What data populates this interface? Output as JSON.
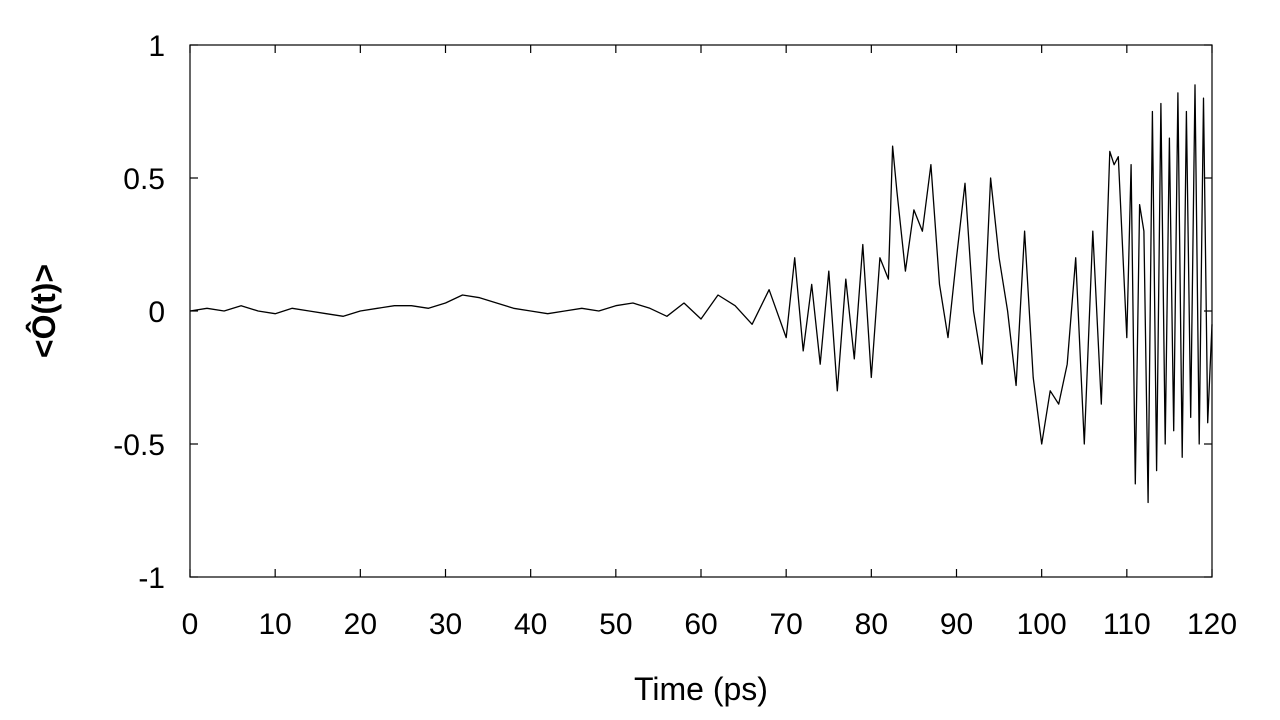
{
  "chart_data": {
    "type": "line",
    "title": "",
    "xlabel": "Time (ps)",
    "ylabel": "<Ô(t)>",
    "xlim": [
      0,
      120
    ],
    "ylim": [
      -1,
      1
    ],
    "xticks": [
      0,
      10,
      20,
      30,
      40,
      50,
      60,
      70,
      80,
      90,
      100,
      110,
      120
    ],
    "xtick_labels": [
      "0",
      "10",
      "20",
      "30",
      "40",
      "50",
      "60",
      "70",
      "80",
      "90",
      "100",
      "110",
      "120"
    ],
    "yticks": [
      -1,
      -0.5,
      0,
      0.5,
      1
    ],
    "ytick_labels": [
      "-1",
      "-0.5",
      "0",
      "0.5",
      "1"
    ],
    "grid": false,
    "legend": "none",
    "line_color": "#000000",
    "series": [
      {
        "x": [
          0,
          2,
          4,
          6,
          8,
          10,
          12,
          14,
          16,
          18,
          20,
          22,
          24,
          26,
          28,
          30,
          32,
          34,
          36,
          38,
          40,
          42,
          44,
          46,
          48,
          50,
          52,
          54,
          56,
          58,
          60,
          62,
          64,
          66,
          68,
          70,
          71,
          72,
          73,
          74,
          75,
          76,
          77,
          78,
          79,
          80,
          81,
          82,
          82.5,
          83,
          84,
          85,
          86,
          87,
          88,
          89,
          90,
          91,
          92,
          93,
          94,
          95,
          96,
          97,
          98,
          99,
          100,
          101,
          102,
          103,
          104,
          105,
          106,
          107,
          108,
          108.5,
          109,
          110,
          110.5,
          111,
          111.5,
          112,
          112.5,
          113,
          113.5,
          114,
          114.5,
          115,
          115.5,
          116,
          116.5,
          117,
          117.5,
          118,
          118.5,
          119,
          119.5,
          120
        ],
        "values": [
          0.0,
          0.01,
          0.0,
          0.02,
          0.0,
          -0.01,
          0.01,
          0.0,
          -0.01,
          -0.02,
          0.0,
          0.01,
          0.02,
          0.02,
          0.01,
          0.03,
          0.06,
          0.05,
          0.03,
          0.01,
          0.0,
          -0.01,
          0.0,
          0.01,
          0.0,
          0.02,
          0.03,
          0.01,
          -0.02,
          0.03,
          -0.03,
          0.06,
          0.02,
          -0.05,
          0.08,
          -0.1,
          0.2,
          -0.15,
          0.1,
          -0.2,
          0.15,
          -0.3,
          0.12,
          -0.18,
          0.25,
          -0.25,
          0.2,
          0.12,
          0.62,
          0.45,
          0.15,
          0.38,
          0.3,
          0.55,
          0.1,
          -0.1,
          0.2,
          0.48,
          0.0,
          -0.2,
          0.5,
          0.2,
          0.0,
          -0.28,
          0.3,
          -0.25,
          -0.5,
          -0.3,
          -0.35,
          -0.2,
          0.2,
          -0.5,
          0.3,
          -0.35,
          0.6,
          0.55,
          0.58,
          -0.1,
          0.55,
          -0.65,
          0.4,
          0.3,
          -0.72,
          0.75,
          -0.6,
          0.78,
          -0.5,
          0.65,
          -0.45,
          0.82,
          -0.55,
          0.75,
          -0.4,
          0.85,
          -0.5,
          0.8,
          -0.42,
          -0.05
        ]
      }
    ]
  }
}
